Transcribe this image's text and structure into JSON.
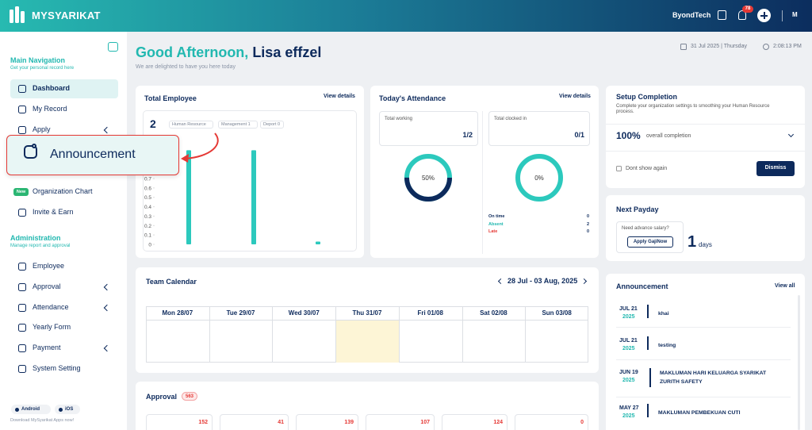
{
  "header": {
    "brand": "MYSYARIKAT",
    "company": "ByondTech",
    "notification_count": "78",
    "avatar": "M"
  },
  "sidebar": {
    "main_navigation": {
      "title": "Main Navigation",
      "subtitle": "Get your personal record here",
      "items": [
        {
          "label": "Dashboard",
          "active": true
        },
        {
          "label": "My Record"
        },
        {
          "label": "Apply",
          "has_submenu": true
        },
        {
          "label": "Organization Chart",
          "badge": "New"
        },
        {
          "label": "Invite & Earn"
        }
      ]
    },
    "administration": {
      "title": "Administration",
      "subtitle": "Manage report and approval",
      "items": [
        {
          "label": "Employee"
        },
        {
          "label": "Approval",
          "has_submenu": true
        },
        {
          "label": "Attendance",
          "has_submenu": true
        },
        {
          "label": "Yearly Form"
        },
        {
          "label": "Payment",
          "has_submenu": true
        },
        {
          "label": "System Setting"
        }
      ]
    },
    "apps": [
      "Android",
      "iOS"
    ],
    "download_text": "Download MySyarikat Apps now!"
  },
  "callout": {
    "label": "Announcement"
  },
  "greeting": {
    "salutation": "Good Afternoon,",
    "name": "Lisa effzel",
    "subtitle": "We are delighted to have you here today"
  },
  "datetime": {
    "date": "31 Jul 2025 | Thursday",
    "time": "2:08:13 PM"
  },
  "total_employee": {
    "title": "Total Employee",
    "link": "View details",
    "count": "2",
    "filters": [
      "Human Resource",
      "Management 1",
      "Deport 0"
    ],
    "chart": {
      "type": "bar",
      "values": [
        1,
        1,
        0.03
      ],
      "ylim": [
        0,
        1
      ],
      "yticks": [
        0,
        0.1,
        0.2,
        0.3,
        0.4,
        0.5,
        0.6,
        0.7
      ]
    }
  },
  "today_attendance": {
    "title": "Today's Attendance",
    "link": "View details",
    "boxes": [
      {
        "label": "Total working",
        "value": "1/2"
      },
      {
        "label": "Total clocked in",
        "value": "0/1"
      }
    ],
    "chart": {
      "type": "donut",
      "values": [
        50,
        0
      ],
      "value_labels": [
        "50%",
        "0%"
      ]
    },
    "legend": [
      {
        "label": "On time",
        "value": "0"
      },
      {
        "label": "Absent",
        "value": "2"
      },
      {
        "label": "Late",
        "value": "0"
      }
    ]
  },
  "setup_completion": {
    "title": "Setup Completion",
    "description": "Complete your organization settings to smoothing your Human Resource process.",
    "percent": "100%",
    "caption": "overall completion",
    "checkbox": "Dont show again",
    "button": "Dismiss"
  },
  "next_payday": {
    "title": "Next Payday",
    "prompt": "Need advance salary?",
    "button": "Apply GajiNow",
    "count": "1",
    "unit": "days"
  },
  "team_calendar": {
    "title": "Team Calendar",
    "range": "28 Jul - 03 Aug, 2025",
    "days": [
      "Mon 28/07",
      "Tue 29/07",
      "Wed 30/07",
      "Thu 31/07",
      "Fri 01/08",
      "Sat 02/08",
      "Sun 03/08"
    ],
    "today_index": 3
  },
  "approval": {
    "title": "Approval",
    "badge": "563",
    "counts": [
      "152",
      "41",
      "139",
      "107",
      "124",
      "0"
    ]
  },
  "announcement": {
    "title": "Announcement",
    "link": "View all",
    "items": [
      {
        "date": "JUL 21",
        "year": "2025",
        "title": "khai"
      },
      {
        "date": "JUL 21",
        "year": "2025",
        "title": "testing"
      },
      {
        "date": "JUN 19",
        "year": "2025",
        "title": "MAKLUMAN HARI KELUARGA SYARIKAT ZURITH SAFETY"
      },
      {
        "date": "MAY 27",
        "year": "2025",
        "title": "MAKLUMAN PEMBEKUAN CUTI"
      }
    ]
  }
}
